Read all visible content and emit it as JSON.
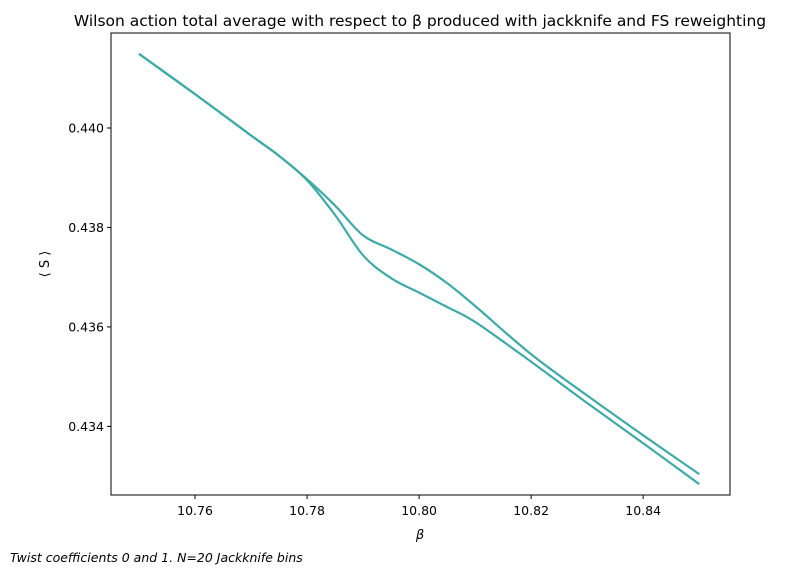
{
  "chart_data": {
    "type": "line",
    "title": "Wilson action total average with respect to β produced with jackknife and FS reweighting",
    "xlabel": "β",
    "ylabel": "⟨ S ⟩",
    "caption": "Twist coefficients 0 and 1. N=20 Jackknife bins",
    "xlim": [
      10.745,
      10.8555
    ],
    "ylim": [
      0.43262,
      0.44191
    ],
    "xticks": [
      "10.76",
      "10.78",
      "10.80",
      "10.82",
      "10.84"
    ],
    "xtick_values": [
      10.76,
      10.78,
      10.8,
      10.82,
      10.84
    ],
    "yticks": [
      "0.434",
      "0.436",
      "0.438",
      "0.440"
    ],
    "ytick_values": [
      0.434,
      0.436,
      0.438,
      0.44
    ],
    "grid": false,
    "line_color": "#3eaaa8",
    "series": [
      {
        "x": [
          10.75,
          10.76,
          10.77,
          10.775,
          10.78,
          10.785,
          10.79,
          10.795,
          10.8,
          10.805,
          10.81,
          10.82,
          10.83,
          10.84,
          10.85
        ],
        "values": [
          0.44149,
          0.44068,
          0.43985,
          0.43944,
          0.43897,
          0.43844,
          0.43784,
          0.43756,
          0.43726,
          0.43688,
          0.43642,
          0.43545,
          0.43462,
          0.43382,
          0.43304
        ]
      },
      {
        "x": [
          10.75,
          10.76,
          10.77,
          10.775,
          10.78,
          10.785,
          10.79,
          10.795,
          10.8,
          10.805,
          10.81,
          10.82,
          10.83,
          10.84,
          10.85
        ],
        "values": [
          0.44149,
          0.44068,
          0.43985,
          0.43944,
          0.43895,
          0.43825,
          0.43744,
          0.43698,
          0.43669,
          0.4364,
          0.4361,
          0.4353,
          0.43447,
          0.43366,
          0.43284
        ]
      }
    ]
  }
}
